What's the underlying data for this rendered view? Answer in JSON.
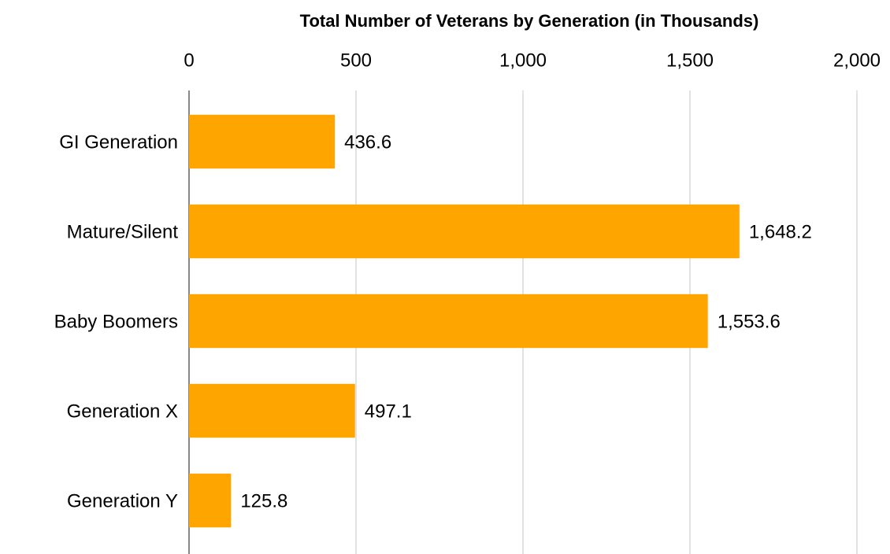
{
  "chart_data": {
    "type": "hbar",
    "title": "Total Number of Veterans by Generation (in Thousands)",
    "categories": [
      "GI Generation",
      "Mature/Silent",
      "Baby Boomers",
      "Generation X",
      "Generation Y"
    ],
    "values": [
      436.6,
      1648.2,
      1553.6,
      497.1,
      125.8
    ],
    "value_labels": [
      "436.6",
      "1,648.2",
      "1,553.6",
      "497.1",
      "125.8"
    ],
    "color": "#ffa500",
    "xlim": [
      0,
      2000
    ],
    "xticks": [
      0,
      500,
      {
        "value": 1000,
        "label": "1,000"
      },
      {
        "value": 1500,
        "label": "1,500"
      },
      {
        "value": 2000,
        "label": "2,000"
      }
    ],
    "grid": true
  }
}
